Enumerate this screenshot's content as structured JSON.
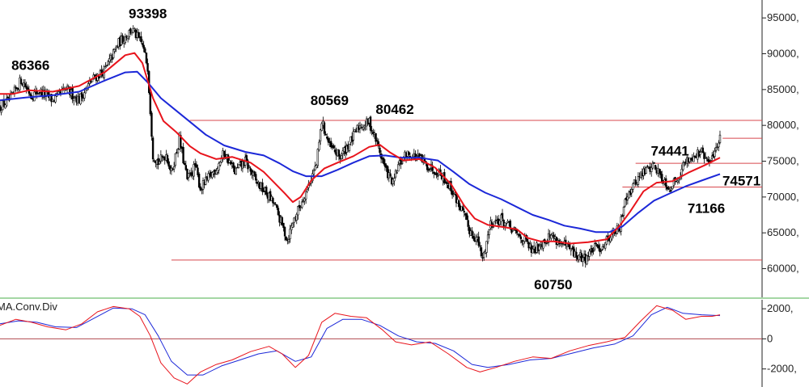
{
  "chart_data": [
    {
      "type": "candlestick",
      "name": "",
      "ylim": [
        56000,
        97500
      ],
      "y_ticks": [
        60000,
        65000,
        70000,
        75000,
        80000,
        85000,
        90000,
        95000
      ],
      "y_tick_labels": [
        "60000,",
        "65000,",
        "70000,",
        "75000,",
        "80000,",
        "85000,",
        "90000,",
        "95000,"
      ],
      "close_path": [
        [
          0,
          82600
        ],
        [
          8,
          83600
        ],
        [
          16,
          86366
        ],
        [
          24,
          84200
        ],
        [
          30,
          84800
        ],
        [
          40,
          83500
        ],
        [
          50,
          85000
        ],
        [
          60,
          83600
        ],
        [
          70,
          86400
        ],
        [
          80,
          87800
        ],
        [
          90,
          91500
        ],
        [
          100,
          93398
        ],
        [
          108,
          91200
        ],
        [
          112,
          88200
        ],
        [
          116,
          76000
        ],
        [
          120,
          74800
        ],
        [
          126,
          76000
        ],
        [
          130,
          73400
        ],
        [
          136,
          78000
        ],
        [
          142,
          72400
        ],
        [
          148,
          74300
        ],
        [
          152,
          71200
        ],
        [
          158,
          72600
        ],
        [
          164,
          74000
        ],
        [
          170,
          76200
        ],
        [
          178,
          73500
        ],
        [
          186,
          75000
        ],
        [
          194,
          72200
        ],
        [
          202,
          70500
        ],
        [
          208,
          69000
        ],
        [
          214,
          66000
        ],
        [
          218,
          64000
        ],
        [
          222,
          66500
        ],
        [
          228,
          69000
        ],
        [
          234,
          71800
        ],
        [
          240,
          74500
        ],
        [
          244,
          80569
        ],
        [
          250,
          77000
        ],
        [
          258,
          75600
        ],
        [
          266,
          77800
        ],
        [
          272,
          79800
        ],
        [
          280,
          80462
        ],
        [
          286,
          77500
        ],
        [
          292,
          74000
        ],
        [
          298,
          71800
        ],
        [
          302,
          74300
        ],
        [
          308,
          76000
        ],
        [
          316,
          75600
        ],
        [
          324,
          74400
        ],
        [
          334,
          73400
        ],
        [
          342,
          71200
        ],
        [
          350,
          68200
        ],
        [
          356,
          65400
        ],
        [
          362,
          64000
        ],
        [
          366,
          61200
        ],
        [
          372,
          66400
        ],
        [
          380,
          66900
        ],
        [
          390,
          65100
        ],
        [
          398,
          63900
        ],
        [
          404,
          62300
        ],
        [
          410,
          63600
        ],
        [
          418,
          64700
        ],
        [
          426,
          63400
        ],
        [
          432,
          62700
        ],
        [
          438,
          61600
        ],
        [
          444,
          61500
        ],
        [
          450,
          62800
        ],
        [
          456,
          63000
        ],
        [
          464,
          65000
        ],
        [
          470,
          65500
        ],
        [
          474,
          70000
        ],
        [
          478,
          70900
        ],
        [
          484,
          72700
        ],
        [
          490,
          73800
        ],
        [
          496,
          74441
        ],
        [
          502,
          72700
        ],
        [
          508,
          71200
        ],
        [
          514,
          72800
        ],
        [
          520,
          75000
        ],
        [
          526,
          75800
        ],
        [
          532,
          76200
        ],
        [
          538,
          74571
        ],
        [
          542,
          76500
        ],
        [
          546,
          78200
        ]
      ],
      "ma_fast": [
        [
          0,
          84400
        ],
        [
          10,
          84400
        ],
        [
          22,
          84900
        ],
        [
          40,
          84700
        ],
        [
          60,
          85500
        ],
        [
          80,
          87500
        ],
        [
          95,
          89800
        ],
        [
          102,
          90100
        ],
        [
          108,
          88700
        ],
        [
          116,
          83800
        ],
        [
          124,
          80600
        ],
        [
          134,
          79000
        ],
        [
          144,
          77100
        ],
        [
          152,
          76100
        ],
        [
          164,
          75300
        ],
        [
          176,
          75600
        ],
        [
          190,
          74800
        ],
        [
          200,
          73500
        ],
        [
          208,
          72000
        ],
        [
          216,
          70500
        ],
        [
          222,
          69300
        ],
        [
          228,
          70000
        ],
        [
          236,
          72300
        ],
        [
          246,
          74000
        ],
        [
          256,
          74800
        ],
        [
          268,
          75700
        ],
        [
          280,
          77000
        ],
        [
          288,
          77300
        ],
        [
          296,
          76200
        ],
        [
          306,
          75100
        ],
        [
          318,
          75300
        ],
        [
          330,
          74100
        ],
        [
          342,
          71800
        ],
        [
          352,
          68800
        ],
        [
          360,
          67000
        ],
        [
          370,
          66100
        ],
        [
          382,
          65800
        ],
        [
          392,
          65500
        ],
        [
          400,
          64300
        ],
        [
          410,
          63800
        ],
        [
          420,
          63800
        ],
        [
          432,
          63500
        ],
        [
          446,
          63700
        ],
        [
          460,
          64100
        ],
        [
          470,
          66000
        ],
        [
          478,
          68000
        ],
        [
          488,
          70800
        ],
        [
          498,
          72000
        ],
        [
          510,
          72200
        ],
        [
          522,
          73400
        ],
        [
          534,
          74400
        ],
        [
          546,
          75500
        ]
      ],
      "ma_slow": [
        [
          0,
          83500
        ],
        [
          20,
          83900
        ],
        [
          40,
          84200
        ],
        [
          60,
          84700
        ],
        [
          80,
          86300
        ],
        [
          95,
          87400
        ],
        [
          104,
          87500
        ],
        [
          112,
          86000
        ],
        [
          122,
          83800
        ],
        [
          132,
          82300
        ],
        [
          144,
          80500
        ],
        [
          156,
          78700
        ],
        [
          170,
          77200
        ],
        [
          186,
          76300
        ],
        [
          200,
          75800
        ],
        [
          212,
          74700
        ],
        [
          222,
          73600
        ],
        [
          232,
          72900
        ],
        [
          244,
          72900
        ],
        [
          256,
          73800
        ],
        [
          268,
          74800
        ],
        [
          280,
          75700
        ],
        [
          292,
          75800
        ],
        [
          304,
          75500
        ],
        [
          318,
          75500
        ],
        [
          332,
          75100
        ],
        [
          344,
          73500
        ],
        [
          356,
          71800
        ],
        [
          368,
          70600
        ],
        [
          380,
          69700
        ],
        [
          392,
          68600
        ],
        [
          404,
          67500
        ],
        [
          416,
          66800
        ],
        [
          428,
          66000
        ],
        [
          440,
          65600
        ],
        [
          452,
          65100
        ],
        [
          462,
          65100
        ],
        [
          472,
          65900
        ],
        [
          484,
          67800
        ],
        [
          496,
          69500
        ],
        [
          508,
          70500
        ],
        [
          520,
          71500
        ],
        [
          532,
          72300
        ],
        [
          546,
          73200
        ]
      ],
      "horizontal_levels": [
        {
          "value": 80700,
          "x_start": 144
        },
        {
          "value": 78200,
          "x_start": 548
        },
        {
          "value": 74700,
          "x_start": 482
        },
        {
          "value": 71400,
          "x_start": 472
        },
        {
          "value": 61200,
          "x_start": 130
        }
      ],
      "annotations": [
        {
          "text": "93398",
          "value": 93398,
          "x": 100
        },
        {
          "text": "86366",
          "value": 86366,
          "x": 16
        },
        {
          "text": "80569",
          "value": 80569,
          "x": 244
        },
        {
          "text": "80462",
          "value": 80462,
          "x": 280
        },
        {
          "text": "74441",
          "value": 74441,
          "x": 496
        },
        {
          "text": "74571",
          "value": 74571,
          "x": 538
        },
        {
          "text": "71166",
          "value": 71166,
          "x": 514
        },
        {
          "text": "60750",
          "value": 60750,
          "x": 405
        }
      ],
      "colors": {
        "up": "#ffffff",
        "down": "#000000",
        "ma_fast": "#e8141c",
        "ma_slow": "#1c28d8",
        "level": "#d8484e"
      }
    },
    {
      "type": "line",
      "name": "MA.Conv.Div",
      "ylim": [
        -3200,
        2600
      ],
      "y_ticks": [
        2000,
        0,
        -2000
      ],
      "y_tick_labels": [
        "2000,",
        "0",
        "-2000,"
      ],
      "macd": [
        [
          0,
          900
        ],
        [
          12,
          1300
        ],
        [
          24,
          1100
        ],
        [
          36,
          800
        ],
        [
          50,
          600
        ],
        [
          62,
          1000
        ],
        [
          74,
          1800
        ],
        [
          86,
          2150
        ],
        [
          98,
          2000
        ],
        [
          106,
          1500
        ],
        [
          114,
          200
        ],
        [
          122,
          -1600
        ],
        [
          132,
          -2600
        ],
        [
          142,
          -3000
        ],
        [
          152,
          -2200
        ],
        [
          164,
          -1700
        ],
        [
          176,
          -1400
        ],
        [
          190,
          -850
        ],
        [
          204,
          -500
        ],
        [
          214,
          -1000
        ],
        [
          224,
          -1900
        ],
        [
          234,
          -1100
        ],
        [
          244,
          1100
        ],
        [
          254,
          1700
        ],
        [
          266,
          1500
        ],
        [
          278,
          1400
        ],
        [
          290,
          600
        ],
        [
          300,
          -200
        ],
        [
          312,
          -400
        ],
        [
          326,
          -200
        ],
        [
          340,
          -1000
        ],
        [
          354,
          -1900
        ],
        [
          364,
          -2200
        ],
        [
          376,
          -1900
        ],
        [
          390,
          -1500
        ],
        [
          404,
          -1200
        ],
        [
          418,
          -1300
        ],
        [
          432,
          -800
        ],
        [
          446,
          -450
        ],
        [
          460,
          -200
        ],
        [
          474,
          100
        ],
        [
          486,
          1200
        ],
        [
          498,
          2200
        ],
        [
          510,
          1900
        ],
        [
          520,
          1300
        ],
        [
          532,
          1500
        ],
        [
          540,
          1500
        ],
        [
          546,
          1600
        ]
      ],
      "signal": [
        [
          0,
          1000
        ],
        [
          14,
          1200
        ],
        [
          28,
          1100
        ],
        [
          42,
          800
        ],
        [
          58,
          750
        ],
        [
          72,
          1400
        ],
        [
          86,
          2050
        ],
        [
          100,
          2000
        ],
        [
          110,
          1600
        ],
        [
          120,
          200
        ],
        [
          130,
          -1500
        ],
        [
          142,
          -2400
        ],
        [
          154,
          -2400
        ],
        [
          168,
          -1800
        ],
        [
          182,
          -1400
        ],
        [
          196,
          -1000
        ],
        [
          210,
          -800
        ],
        [
          224,
          -1500
        ],
        [
          236,
          -1200
        ],
        [
          248,
          700
        ],
        [
          260,
          1300
        ],
        [
          274,
          1300
        ],
        [
          288,
          900
        ],
        [
          302,
          200
        ],
        [
          316,
          -200
        ],
        [
          330,
          -300
        ],
        [
          344,
          -800
        ],
        [
          358,
          -1700
        ],
        [
          370,
          -1900
        ],
        [
          386,
          -1700
        ],
        [
          402,
          -1400
        ],
        [
          418,
          -1300
        ],
        [
          434,
          -950
        ],
        [
          450,
          -600
        ],
        [
          466,
          -350
        ],
        [
          480,
          200
        ],
        [
          494,
          1600
        ],
        [
          506,
          2100
        ],
        [
          518,
          1700
        ],
        [
          532,
          1600
        ],
        [
          546,
          1550
        ]
      ],
      "zero_line": 0,
      "colors": {
        "macd": "#e8141c",
        "signal": "#1c28d8",
        "zero": "#b0484e"
      }
    }
  ]
}
